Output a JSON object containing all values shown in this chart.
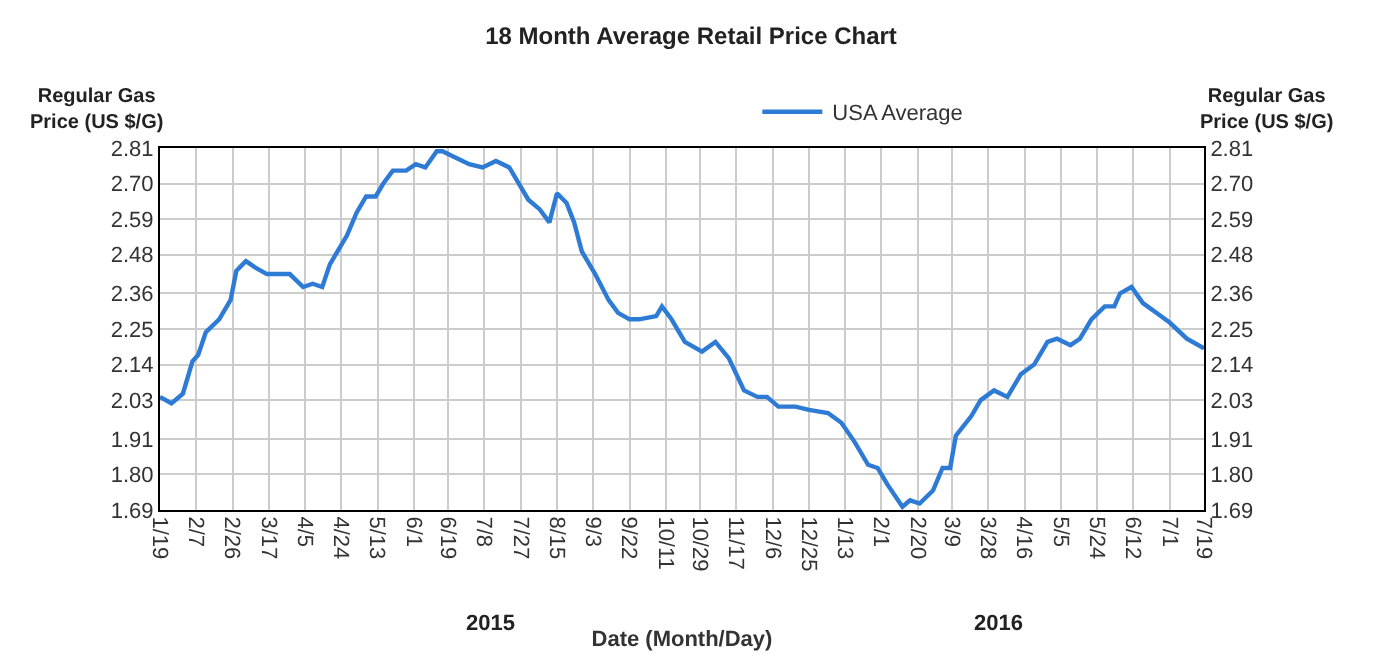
{
  "chart_data": {
    "type": "line",
    "title": "18 Month Average Retail Price Chart",
    "xlabel": "Date (Month/Day)",
    "ylabel": "Regular Gas Price (US $/G)",
    "y2label": "Regular Gas Price (US $/G)",
    "x": [
      "2015-01-19",
      "2015-01-25",
      "2015-01-31",
      "2015-02-05",
      "2015-02-08",
      "2015-02-12",
      "2015-02-19",
      "2015-02-25",
      "2015-02-28",
      "2015-03-05",
      "2015-03-10",
      "2015-03-16",
      "2015-03-23",
      "2015-03-28",
      "2015-04-04",
      "2015-04-09",
      "2015-04-14",
      "2015-04-18",
      "2015-04-21",
      "2015-04-27",
      "2015-05-02",
      "2015-05-07",
      "2015-05-12",
      "2015-05-16",
      "2015-05-21",
      "2015-05-28",
      "2015-06-02",
      "2015-06-07",
      "2015-06-13",
      "2015-06-16",
      "2015-06-23",
      "2015-06-30",
      "2015-07-07",
      "2015-07-14",
      "2015-07-21",
      "2015-07-26",
      "2015-07-31",
      "2015-08-06",
      "2015-08-11",
      "2015-08-15",
      "2015-08-20",
      "2015-08-24",
      "2015-08-28",
      "2015-09-04",
      "2015-09-11",
      "2015-09-16",
      "2015-09-22",
      "2015-09-27",
      "2015-10-06",
      "2015-10-09",
      "2015-10-14",
      "2015-10-21",
      "2015-10-30",
      "2015-11-06",
      "2015-11-13",
      "2015-11-21",
      "2015-11-28",
      "2015-12-03",
      "2015-12-09",
      "2015-12-18",
      "2015-12-25",
      "2016-01-04",
      "2016-01-11",
      "2016-01-18",
      "2016-01-25",
      "2016-01-30",
      "2016-02-04",
      "2016-02-12",
      "2016-02-16",
      "2016-02-21",
      "2016-02-28",
      "2016-03-04",
      "2016-03-08",
      "2016-03-11",
      "2016-03-19",
      "2016-03-24",
      "2016-03-31",
      "2016-04-07",
      "2016-04-14",
      "2016-04-21",
      "2016-04-28",
      "2016-05-03",
      "2016-05-10",
      "2016-05-15",
      "2016-05-21",
      "2016-05-28",
      "2016-06-02",
      "2016-06-05",
      "2016-06-11",
      "2016-06-17",
      "2016-06-24",
      "2016-07-01",
      "2016-07-10",
      "2016-07-19"
    ],
    "series": [
      {
        "name": "USA Average",
        "color": "#2e7bd6",
        "values": [
          2.04,
          2.02,
          2.05,
          2.15,
          2.17,
          2.24,
          2.28,
          2.34,
          2.43,
          2.46,
          2.44,
          2.42,
          2.42,
          2.42,
          2.38,
          2.39,
          2.38,
          2.45,
          2.48,
          2.54,
          2.61,
          2.66,
          2.66,
          2.7,
          2.74,
          2.74,
          2.76,
          2.75,
          2.8,
          2.8,
          2.78,
          2.76,
          2.75,
          2.77,
          2.75,
          2.7,
          2.65,
          2.62,
          2.58,
          2.67,
          2.64,
          2.58,
          2.49,
          2.42,
          2.34,
          2.3,
          2.28,
          2.28,
          2.29,
          2.32,
          2.28,
          2.21,
          2.18,
          2.21,
          2.16,
          2.06,
          2.04,
          2.04,
          2.01,
          2.01,
          2.0,
          1.99,
          1.96,
          1.9,
          1.83,
          1.82,
          1.77,
          1.7,
          1.72,
          1.71,
          1.75,
          1.82,
          1.82,
          1.92,
          1.98,
          2.03,
          2.06,
          2.04,
          2.11,
          2.14,
          2.21,
          2.22,
          2.2,
          2.22,
          2.28,
          2.32,
          2.32,
          2.36,
          2.38,
          2.33,
          2.3,
          2.27,
          2.22,
          2.19
        ]
      }
    ],
    "xlim": [
      "2015-01-19",
      "2016-07-19"
    ],
    "xticks": [
      {
        "value": "2015-01-19",
        "label": "1/19"
      },
      {
        "value": "2015-02-07",
        "label": "2/7"
      },
      {
        "value": "2015-02-26",
        "label": "2/26"
      },
      {
        "value": "2015-03-17",
        "label": "3/17"
      },
      {
        "value": "2015-04-05",
        "label": "4/5"
      },
      {
        "value": "2015-04-24",
        "label": "4/24"
      },
      {
        "value": "2015-05-13",
        "label": "5/13"
      },
      {
        "value": "2015-06-01",
        "label": "6/1"
      },
      {
        "value": "2015-06-19",
        "label": "6/19"
      },
      {
        "value": "2015-07-08",
        "label": "7/8"
      },
      {
        "value": "2015-07-27",
        "label": "7/27"
      },
      {
        "value": "2015-08-15",
        "label": "8/15"
      },
      {
        "value": "2015-09-03",
        "label": "9/3"
      },
      {
        "value": "2015-09-22",
        "label": "9/22"
      },
      {
        "value": "2015-10-11",
        "label": "10/11"
      },
      {
        "value": "2015-10-29",
        "label": "10/29"
      },
      {
        "value": "2015-11-17",
        "label": "11/17"
      },
      {
        "value": "2015-12-06",
        "label": "12/6"
      },
      {
        "value": "2015-12-25",
        "label": "12/25"
      },
      {
        "value": "2016-01-13",
        "label": "1/13"
      },
      {
        "value": "2016-02-01",
        "label": "2/1"
      },
      {
        "value": "2016-02-20",
        "label": "2/20"
      },
      {
        "value": "2016-03-09",
        "label": "3/9"
      },
      {
        "value": "2016-03-28",
        "label": "3/28"
      },
      {
        "value": "2016-04-16",
        "label": "4/16"
      },
      {
        "value": "2016-05-05",
        "label": "5/5"
      },
      {
        "value": "2016-05-24",
        "label": "5/24"
      },
      {
        "value": "2016-06-12",
        "label": "6/12"
      },
      {
        "value": "2016-07-01",
        "label": "7/1"
      },
      {
        "value": "2016-07-19",
        "label": "7/19"
      }
    ],
    "ylim": [
      1.69,
      2.81
    ],
    "yticks": [
      1.69,
      {
        "value": 1.8,
        "label": "1.80"
      },
      1.91,
      2.03,
      2.14,
      2.25,
      2.36,
      2.48,
      2.59,
      {
        "value": 2.7,
        "label": "2.70"
      },
      2.81
    ],
    "y2lim": [
      1.69,
      2.81
    ],
    "y2ticks": [
      1.69,
      {
        "value": 1.8,
        "label": "1.80"
      },
      1.91,
      2.03,
      2.14,
      2.25,
      2.36,
      2.48,
      2.59,
      {
        "value": 2.7,
        "label": "2.70"
      },
      2.81
    ],
    "annotations": [
      "2015",
      "2016"
    ],
    "grid": true,
    "legend": "top right",
    "marker": "none",
    "line_style": "solid"
  }
}
